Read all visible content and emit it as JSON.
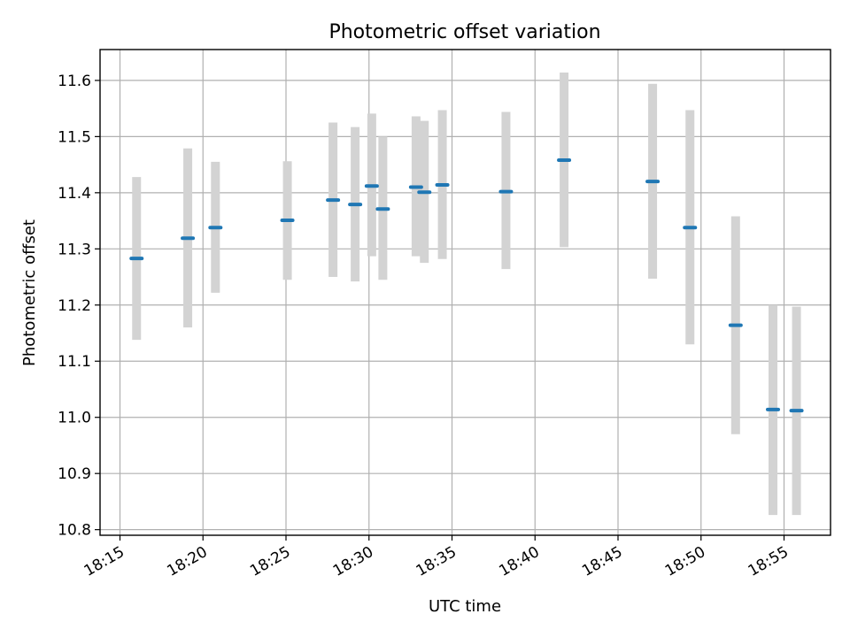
{
  "chart_data": {
    "type": "scatter",
    "title": "Photometric offset variation",
    "xlabel": "UTC time",
    "ylabel": "Photometric offset",
    "x_tick_labels": [
      "18:15",
      "18:20",
      "18:25",
      "18:30",
      "18:35",
      "18:40",
      "18:45",
      "18:50",
      "18:55"
    ],
    "y_tick_labels": [
      "10.8",
      "10.9",
      "11.0",
      "11.1",
      "11.2",
      "11.3",
      "11.4",
      "11.5",
      "11.6"
    ],
    "ylim": [
      10.79,
      11.655
    ],
    "xlim": [
      "18:13:48",
      "18:57:48"
    ],
    "grid": true,
    "colors": {
      "point": "#1f77b4",
      "errorbar": "#d3d3d3"
    },
    "series": [
      {
        "points": [
          {
            "x": "18:16:00",
            "y": 11.283,
            "ylo": 11.138,
            "yhi": 11.428
          },
          {
            "x": "18:19:05",
            "y": 11.319,
            "ylo": 11.16,
            "yhi": 11.479
          },
          {
            "x": "18:20:45",
            "y": 11.338,
            "ylo": 11.222,
            "yhi": 11.455
          },
          {
            "x": "18:25:05",
            "y": 11.351,
            "ylo": 11.245,
            "yhi": 11.456
          },
          {
            "x": "18:27:50",
            "y": 11.387,
            "ylo": 11.25,
            "yhi": 11.525
          },
          {
            "x": "18:29:10",
            "y": 11.379,
            "ylo": 11.242,
            "yhi": 11.517
          },
          {
            "x": "18:30:10",
            "y": 11.412,
            "ylo": 11.287,
            "yhi": 11.541
          },
          {
            "x": "18:30:50",
            "y": 11.371,
            "ylo": 11.245,
            "yhi": 11.5
          },
          {
            "x": "18:32:50",
            "y": 11.41,
            "ylo": 11.287,
            "yhi": 11.536
          },
          {
            "x": "18:33:20",
            "y": 11.401,
            "ylo": 11.275,
            "yhi": 11.528
          },
          {
            "x": "18:34:25",
            "y": 11.414,
            "ylo": 11.282,
            "yhi": 11.547
          },
          {
            "x": "18:38:15",
            "y": 11.402,
            "ylo": 11.264,
            "yhi": 11.544
          },
          {
            "x": "18:41:45",
            "y": 11.458,
            "ylo": 11.303,
            "yhi": 11.614
          },
          {
            "x": "18:47:05",
            "y": 11.42,
            "ylo": 11.247,
            "yhi": 11.594
          },
          {
            "x": "18:49:20",
            "y": 11.338,
            "ylo": 11.13,
            "yhi": 11.547
          },
          {
            "x": "18:52:05",
            "y": 11.164,
            "ylo": 10.97,
            "yhi": 11.358
          },
          {
            "x": "18:54:20",
            "y": 11.014,
            "ylo": 10.826,
            "yhi": 11.2
          },
          {
            "x": "18:55:45",
            "y": 11.012,
            "ylo": 10.826,
            "yhi": 11.197
          }
        ]
      }
    ]
  }
}
